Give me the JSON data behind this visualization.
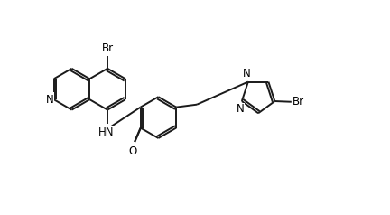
{
  "background_color": "#ffffff",
  "line_color": "#1a1a1a",
  "line_width": 1.4,
  "text_color": "#000000",
  "figsize": [
    4.32,
    2.38
  ],
  "dpi": 100,
  "font_size": 8.5,
  "labels": {
    "Br_top": "Br",
    "Br_right": "Br",
    "N_quinoline": "N",
    "NH": "HN",
    "O": "O",
    "N1_pyrazole": "N",
    "N2_pyrazole": "N"
  }
}
